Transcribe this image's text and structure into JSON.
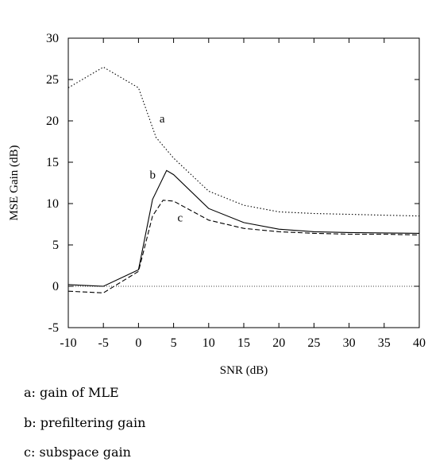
{
  "chart_data": {
    "type": "line",
    "title": "",
    "xlabel": "SNR (dB)",
    "ylabel": "MSE Gain (dB)",
    "xlim": [
      -10,
      40
    ],
    "ylim": [
      -5,
      30
    ],
    "xticks": [
      -10,
      -5,
      0,
      5,
      10,
      15,
      20,
      25,
      30,
      35,
      40
    ],
    "yticks": [
      -5,
      0,
      5,
      10,
      15,
      20,
      25,
      30
    ],
    "xtick_labels": [
      "-10",
      "-5",
      "0",
      "5",
      "10",
      "15",
      "20",
      "25",
      "30",
      "35",
      "40"
    ],
    "ytick_labels": [
      "-5",
      "0",
      "5",
      "10",
      "15",
      "20",
      "25",
      "30"
    ],
    "grid": false,
    "reference_line": {
      "y": 0,
      "style": "dotted"
    },
    "series": [
      {
        "name": "a",
        "style": "dotted",
        "x": [
          -10,
          -5,
          0,
          2.5,
          5,
          10,
          15,
          20,
          25,
          30,
          35,
          40
        ],
        "y": [
          24,
          26.5,
          24,
          18,
          15.5,
          11.5,
          9.8,
          9,
          8.8,
          8.7,
          8.6,
          8.5
        ]
      },
      {
        "name": "b",
        "style": "solid",
        "x": [
          -10,
          -5,
          0,
          2,
          4,
          5,
          10,
          15,
          20,
          25,
          30,
          35,
          40
        ],
        "y": [
          0.2,
          0,
          2,
          10.5,
          14,
          13.5,
          9.4,
          7.7,
          6.9,
          6.6,
          6.5,
          6.45,
          6.4
        ],
        "label_at": [
          2.5,
          13.5
        ]
      },
      {
        "name": "c",
        "style": "dashed",
        "x": [
          -10,
          -5,
          0,
          2,
          3.5,
          5,
          10,
          15,
          20,
          25,
          30,
          35,
          40
        ],
        "y": [
          -0.6,
          -0.8,
          1.8,
          8.5,
          10.4,
          10.3,
          8,
          7,
          6.6,
          6.4,
          6.3,
          6.3,
          6.2
        ],
        "label_at": [
          6,
          8.3
        ]
      }
    ]
  },
  "captions": [
    "a: gain of MLE",
    "b: prefiltering gain",
    "c: subspace gain"
  ]
}
